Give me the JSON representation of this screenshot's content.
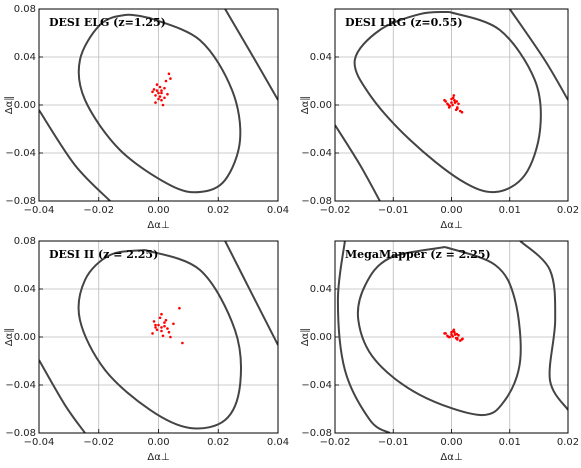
{
  "chart_data": [
    {
      "type": "scatter",
      "title": "DESI ELG (z=1.25)",
      "xlabel": "Δα⊥",
      "ylabel": "Δα∥",
      "grid": true,
      "xlim": [
        -0.04,
        0.04
      ],
      "ylim": [
        -0.08,
        0.08
      ],
      "xticks": [
        {
          "value": -0.04,
          "label": "−0.04"
        },
        {
          "value": -0.02,
          "label": "−0.02"
        },
        {
          "value": 0,
          "label": "0.00"
        },
        {
          "value": 0.02,
          "label": "0.02"
        },
        {
          "value": 0.04,
          "label": "0.04"
        }
      ],
      "yticks": [
        {
          "value": -0.08,
          "label": "−0.08"
        },
        {
          "value": -0.04,
          "label": "−0.04"
        },
        {
          "value": 0,
          "label": "0.00"
        },
        {
          "value": 0.04,
          "label": "0.04"
        },
        {
          "value": 0.08,
          "label": "0.08"
        }
      ],
      "contours": [
        {
          "color": "#444444",
          "x": [
            -0.0028,
            0.0139,
            0.0246,
            0.0273,
            0.0223,
            0.0139,
            0.0038,
            -0.0129,
            -0.0246,
            -0.0263,
            -0.0196,
            -0.0112,
            -0.0028
          ],
          "y": [
            0.0725,
            0.054,
            0.0125,
            -0.029,
            -0.0625,
            -0.0725,
            -0.0667,
            -0.0375,
            0.0042,
            0.0375,
            0.0667,
            0.075,
            0.0725
          ]
        },
        {
          "color": "#444444",
          "x": [
            0.0223,
            0.0323,
            0.04
          ],
          "y": [
            0.08,
            0.0375,
            0.0042
          ]
        },
        {
          "color": "#444444",
          "x": [
            -0.04,
            -0.028,
            -0.0162
          ],
          "y": [
            -0.0042,
            -0.05,
            -0.08
          ]
        }
      ],
      "points": {
        "color": "#ff0000",
        "x": [
          0,
          0.001,
          -0.001,
          0.002,
          -0.002,
          0.0005,
          0.001,
          -0.0015,
          0.003,
          0.0025,
          0,
          -0.0005,
          0.0015,
          0.0035,
          -0.001,
          0.002,
          0.004,
          0.0005,
          0.001,
          -0.0005
        ],
        "y": [
          0.01,
          0.012,
          0.008,
          0.006,
          0.011,
          0.015,
          0.004,
          0.013,
          0.009,
          0.02,
          0.005,
          0.017,
          0.0,
          0.026,
          0.002,
          0.014,
          0.022,
          0.007,
          0.01,
          0.012
        ]
      }
    },
    {
      "type": "scatter",
      "title": "DESI LRG (z=0.55)",
      "xlabel": "Δα⊥",
      "ylabel": "Δα∥",
      "grid": true,
      "xlim": [
        -0.02,
        0.02
      ],
      "ylim": [
        -0.08,
        0.08
      ],
      "xticks": [
        {
          "value": -0.02,
          "label": "−0.02"
        },
        {
          "value": -0.01,
          "label": "−0.01"
        },
        {
          "value": 0,
          "label": "0.00"
        },
        {
          "value": 0.01,
          "label": "0.01"
        },
        {
          "value": 0.02,
          "label": "0.02"
        }
      ],
      "yticks": [
        {
          "value": -0.08,
          "label": "−0.08"
        },
        {
          "value": -0.04,
          "label": "−0.04"
        },
        {
          "value": 0,
          "label": "0.00"
        },
        {
          "value": 0.04,
          "label": "0.04"
        }
      ],
      "contours": [
        {
          "color": "#444444",
          "x": [
            -0.0003,
            0.0083,
            0.0143,
            0.0152,
            0.0126,
            0.0075,
            0.0015,
            -0.0071,
            -0.014,
            -0.0166,
            -0.0123,
            -0.0054,
            -0.0003
          ],
          "y": [
            0.0775,
            0.0625,
            0.0208,
            -0.0208,
            -0.0583,
            -0.0725,
            -0.0625,
            -0.0292,
            0.0083,
            0.0375,
            0.0625,
            0.0758,
            0.0775
          ]
        },
        {
          "color": "#444444",
          "x": [
            0.01,
            0.016,
            0.02
          ],
          "y": [
            0.08,
            0.0375,
            0.0042
          ]
        },
        {
          "color": "#444444",
          "x": [
            -0.02,
            -0.0157,
            -0.0123
          ],
          "y": [
            -0.0167,
            -0.05,
            -0.08
          ]
        }
      ],
      "points": {
        "color": "#ff0000",
        "x": [
          0,
          0.0005,
          -0.0005,
          0.001,
          -0.001,
          0.0003,
          0.0008,
          -0.0007,
          0.0012,
          0.0015,
          0,
          -0.0003,
          0.0006,
          0.001,
          -0.0012,
          0.0004,
          0.0018,
          0.0002,
          0.0009,
          -0.0004
        ],
        "y": [
          0.002,
          0.004,
          0,
          -0.002,
          0.003,
          0.006,
          -0.004,
          0.001,
          0.001,
          -0.005,
          0.005,
          -0.001,
          0.002,
          -0.003,
          0.004,
          0.008,
          -0.006,
          0,
          0.003,
          -0.002
        ]
      }
    },
    {
      "type": "scatter",
      "title": "DESI II (z = 2.25)",
      "xlabel": "Δα⊥",
      "ylabel": "Δα∥",
      "grid": true,
      "xlim": [
        -0.04,
        0.04
      ],
      "ylim": [
        -0.08,
        0.08
      ],
      "xticks": [
        {
          "value": -0.04,
          "label": "−0.04"
        },
        {
          "value": -0.02,
          "label": "−0.02"
        },
        {
          "value": 0,
          "label": "0.00"
        },
        {
          "value": 0.02,
          "label": "0.02"
        },
        {
          "value": 0.04,
          "label": "0.04"
        }
      ],
      "yticks": [
        {
          "value": -0.08,
          "label": "−0.08"
        },
        {
          "value": -0.04,
          "label": "−0.04"
        },
        {
          "value": 0,
          "label": "0.00"
        },
        {
          "value": 0.04,
          "label": "0.04"
        },
        {
          "value": 0.08,
          "label": "0.08"
        }
      ],
      "contours": [
        {
          "color": "#444444",
          "x": [
            -0.0045,
            0.0139,
            0.0256,
            0.0273,
            0.0223,
            0.0105,
            -0.0028,
            -0.0179,
            -0.0263,
            -0.0246,
            -0.0162,
            -0.0045
          ],
          "y": [
            0.0725,
            0.0558,
            0.0058,
            -0.04,
            -0.0692,
            -0.0758,
            -0.0608,
            -0.0275,
            0.0142,
            0.0475,
            0.0683,
            0.0725
          ]
        },
        {
          "color": "#444444",
          "x": [
            0.0223,
            0.0306,
            0.04
          ],
          "y": [
            0.08,
            0.0392,
            -0.0067
          ]
        },
        {
          "color": "#444444",
          "x": [
            -0.04,
            -0.0313,
            -0.0246
          ],
          "y": [
            -0.0192,
            -0.0567,
            -0.08
          ]
        }
      ],
      "points": {
        "color": "#ff0000",
        "x": [
          0,
          0.001,
          -0.001,
          0.002,
          -0.002,
          0.0005,
          0.003,
          0.001,
          0.007,
          0.004,
          -0.0015,
          0.002,
          0.0035,
          -0.0005,
          0.005,
          0.0015,
          0.008,
          0.0025,
          -0.001,
          0.001
        ],
        "y": [
          0.01,
          0.005,
          0.008,
          0.012,
          0.003,
          0.016,
          0.007,
          0.019,
          0.024,
          0.0,
          0.013,
          0.009,
          0.004,
          0.006,
          0.011,
          0.001,
          -0.005,
          0.014,
          0.01,
          0.008
        ]
      }
    },
    {
      "type": "scatter",
      "title": "MegaMapper (z = 2.25)",
      "xlabel": "Δα⊥",
      "ylabel": "Δα∥",
      "grid": true,
      "xlim": [
        -0.02,
        0.02
      ],
      "ylim": [
        -0.08,
        0.08
      ],
      "xticks": [
        {
          "value": -0.02,
          "label": "−0.02"
        },
        {
          "value": -0.01,
          "label": "−0.01"
        },
        {
          "value": 0,
          "label": "0.00"
        },
        {
          "value": 0.01,
          "label": "0.01"
        },
        {
          "value": 0.02,
          "label": "0.02"
        }
      ],
      "yticks": [
        {
          "value": -0.08,
          "label": "−0.08"
        },
        {
          "value": -0.04,
          "label": "−0.04"
        },
        {
          "value": 0,
          "label": "0.00"
        },
        {
          "value": 0.04,
          "label": "0.04"
        }
      ],
      "contours": [
        {
          "color": "#444444",
          "x": [
            -0.0011,
            0.0075,
            0.0109,
            0.0118,
            0.0092,
            0.0049,
            -0.0054,
            -0.0131,
            -0.016,
            -0.0148,
            -0.0106,
            -0.0011
          ],
          "y": [
            0.075,
            0.06,
            0.0308,
            -0.0192,
            -0.0525,
            -0.065,
            -0.0483,
            -0.0192,
            0.0142,
            0.0433,
            0.0658,
            0.075
          ]
        },
        {
          "color": "#444444",
          "x": [
            -0.0183,
            -0.0195,
            -0.0183,
            -0.014,
            -0.0106
          ],
          "y": [
            0.08,
            0.0308,
            -0.0275,
            -0.0692,
            -0.08
          ]
        },
        {
          "color": "#444444",
          "x": [
            0.0118,
            0.0169,
            0.0178,
            0.0169,
            0.02
          ],
          "y": [
            0.08,
            0.0558,
            0.0142,
            -0.0358,
            -0.0608
          ]
        }
      ],
      "points": {
        "color": "#ff0000",
        "x": [
          0,
          0.0005,
          -0.0005,
          0.001,
          -0.001,
          0.0003,
          0.0008,
          -0.0007,
          0.0012,
          0.0015,
          0,
          -0.0003,
          0.0006,
          0.001,
          -0.0012,
          0.0004,
          0.0018,
          0.0002,
          0.0009,
          0.0019
        ],
        "y": [
          0.002,
          0.004,
          0,
          -0.002,
          0.003,
          0.005,
          -0.001,
          0.001,
          0.0015,
          -0.003,
          0.004,
          0,
          0.002,
          -0.001,
          0.003,
          0.006,
          -0.002,
          0.0005,
          0.0025,
          -0.0015
        ]
      }
    }
  ]
}
